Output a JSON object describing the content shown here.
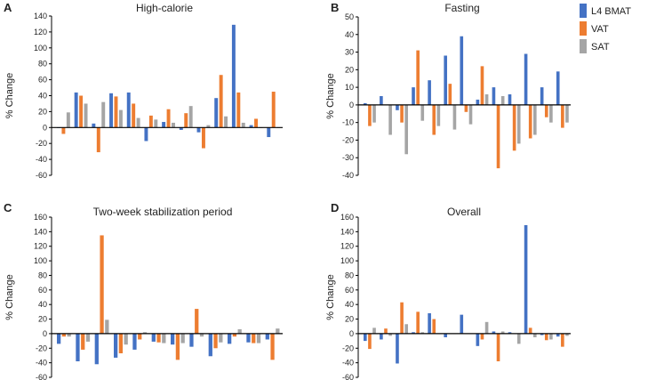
{
  "colors": {
    "L4 BMAT": "#4472c4",
    "VAT": "#ed7d31",
    "SAT": "#a5a5a5"
  },
  "legend": [
    "L4 BMAT",
    "VAT",
    "SAT"
  ],
  "chart_data": [
    {
      "panel": "A",
      "title": "High-calorie",
      "type": "bar",
      "ylabel": "% Change",
      "ylim": [
        -60,
        140
      ],
      "yticks": [
        -60,
        -40,
        -20,
        0,
        20,
        40,
        60,
        80,
        100,
        120,
        140
      ],
      "series": [
        {
          "name": "L4 BMAT",
          "values": [
            0,
            44,
            5,
            43,
            44,
            -17,
            7,
            -3,
            -6,
            37,
            129,
            3,
            -12
          ]
        },
        {
          "name": "VAT",
          "values": [
            -8,
            40,
            -31,
            39,
            30,
            15,
            23,
            18,
            -26,
            66,
            44,
            11,
            45
          ]
        },
        {
          "name": "SAT",
          "values": [
            19,
            30,
            32,
            22,
            12,
            10,
            6,
            27,
            3,
            14,
            6,
            0,
            0
          ]
        }
      ]
    },
    {
      "panel": "B",
      "title": "Fasting",
      "type": "bar",
      "ylabel": "% Change",
      "ylim": [
        -40,
        50
      ],
      "yticks": [
        -40,
        -30,
        -20,
        -10,
        0,
        10,
        20,
        30,
        40,
        50
      ],
      "series": [
        {
          "name": "L4 BMAT",
          "values": [
            1,
            5,
            -3,
            10,
            14,
            28,
            39,
            3,
            10,
            6,
            29,
            10,
            19
          ]
        },
        {
          "name": "VAT",
          "values": [
            -12,
            0,
            -10,
            31,
            -17,
            12,
            -4,
            22,
            -36,
            -26,
            -19,
            -7,
            -13
          ]
        },
        {
          "name": "SAT",
          "values": [
            -10,
            -17,
            -28,
            -9,
            -12,
            -14,
            -11,
            6,
            5,
            -22,
            -17,
            -10,
            -10
          ]
        }
      ]
    },
    {
      "panel": "C",
      "title": "Two-week stabilization period",
      "type": "bar",
      "ylabel": "% Change",
      "ylim": [
        -60,
        160
      ],
      "yticks": [
        -60,
        -40,
        -20,
        0,
        20,
        40,
        60,
        80,
        100,
        120,
        140,
        160
      ],
      "series": [
        {
          "name": "L4 BMAT",
          "values": [
            -14,
            -38,
            -42,
            -33,
            -22,
            -11,
            -15,
            -18,
            -31,
            -14,
            -12,
            -8
          ]
        },
        {
          "name": "VAT",
          "values": [
            -4,
            -22,
            135,
            -27,
            -8,
            -12,
            -36,
            34,
            -20,
            -4,
            -13,
            -36
          ]
        },
        {
          "name": "SAT",
          "values": [
            -4,
            -11,
            19,
            -15,
            2,
            -13,
            -13,
            -4,
            -12,
            6,
            -13,
            7
          ]
        }
      ]
    },
    {
      "panel": "D",
      "title": "Overall",
      "type": "bar",
      "ylabel": "% Change",
      "ylim": [
        -60,
        160
      ],
      "yticks": [
        -60,
        -40,
        -20,
        0,
        20,
        40,
        60,
        80,
        100,
        120,
        140,
        160
      ],
      "series": [
        {
          "name": "L4 BMAT",
          "values": [
            -10,
            -8,
            -41,
            2,
            28,
            -5,
            26,
            -17,
            3,
            2,
            149,
            -2,
            -4
          ]
        },
        {
          "name": "VAT",
          "values": [
            -21,
            7,
            43,
            30,
            20,
            0,
            0,
            -8,
            -38,
            0,
            8,
            -9,
            -18
          ]
        },
        {
          "name": "SAT",
          "values": [
            8,
            -3,
            13,
            2,
            0,
            0,
            0,
            16,
            3,
            -14,
            -5,
            -8,
            -3
          ]
        }
      ]
    }
  ]
}
